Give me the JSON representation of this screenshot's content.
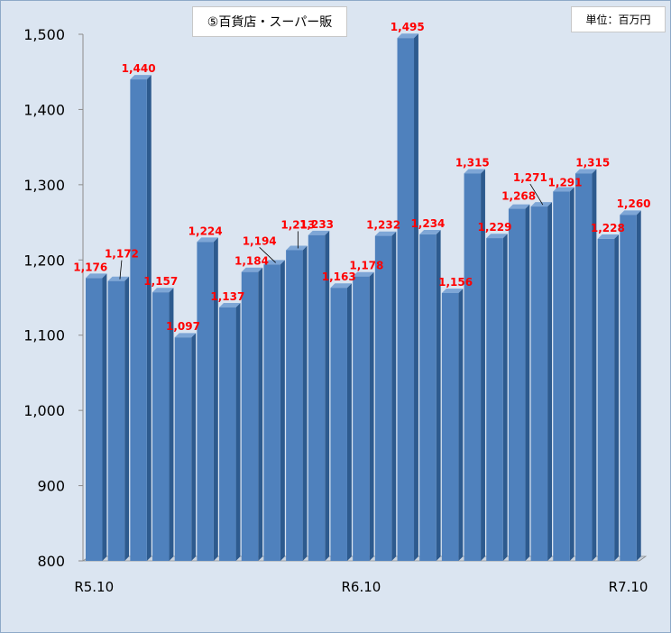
{
  "chart_data": {
    "type": "bar",
    "title": "⑤百貨店・スーパー販",
    "unit_label": "単位：百万円",
    "ylim": [
      800,
      1500
    ],
    "yticks": [
      "800",
      "900",
      "1,000",
      "1,100",
      "1,200",
      "1,300",
      "1,400",
      "1,500"
    ],
    "xtick_labels": [
      "R5.10",
      "R6.10",
      "R7.10"
    ],
    "values": [
      1176,
      1172,
      1440,
      1157,
      1097,
      1224,
      1137,
      1184,
      1194,
      1213,
      1233,
      1163,
      1178,
      1232,
      1495,
      1234,
      1156,
      1315,
      1229,
      1268,
      1271,
      1291,
      1315,
      1228,
      1260
    ],
    "value_labels": [
      "1,176",
      "1,172",
      "1,440",
      "1,157",
      "1,097",
      "1,224",
      "1,137",
      "1,184",
      "1,194",
      "1,213",
      "1,233",
      "1,163",
      "1,178",
      "1,232",
      "1,495",
      "1,234",
      "1,156",
      "1,315",
      "1,229",
      "1,268",
      "1,271",
      "1,291",
      "1,315",
      "1,228",
      "1,260"
    ],
    "bar_color": "#4f81bd",
    "label_color": "#ff0000",
    "grid": false
  }
}
